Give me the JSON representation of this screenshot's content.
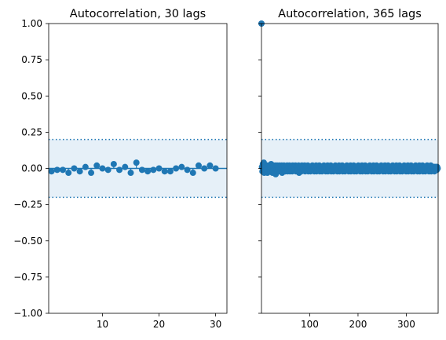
{
  "chart_data": [
    {
      "type": "scatter",
      "subtype": "acf-stem",
      "title": "Autocorrelation, 30 lags",
      "xlabel": "",
      "ylabel": "",
      "xlim": [
        0.5,
        32
      ],
      "ylim": [
        -1.0,
        1.0
      ],
      "xticks": [
        10,
        20,
        30
      ],
      "xtick_labels": [
        "10",
        "20",
        "30"
      ],
      "yticks": [
        1.0,
        0.75,
        0.5,
        0.25,
        0.0,
        -0.25,
        -0.5,
        -0.75,
        -1.0
      ],
      "ytick_labels": [
        "1.00",
        "0.75",
        "0.50",
        "0.25",
        "0.00",
        "−0.25",
        "−0.50",
        "−0.75",
        "−1.00"
      ],
      "confidence_band": [
        -0.2,
        0.2
      ],
      "grid": false,
      "color": "#1f77b4",
      "band_color": "#e6f0f8",
      "x": [
        1,
        2,
        3,
        4,
        5,
        6,
        7,
        8,
        9,
        10,
        11,
        12,
        13,
        14,
        15,
        16,
        17,
        18,
        19,
        20,
        21,
        22,
        23,
        24,
        25,
        26,
        27,
        28,
        29,
        30
      ],
      "values": [
        -0.02,
        -0.01,
        -0.01,
        -0.03,
        0.0,
        -0.02,
        0.01,
        -0.03,
        0.02,
        0.0,
        -0.01,
        0.03,
        -0.01,
        0.01,
        -0.03,
        0.04,
        -0.01,
        -0.02,
        -0.01,
        0.0,
        -0.02,
        -0.02,
        0.0,
        0.01,
        -0.01,
        -0.03,
        0.02,
        0.0,
        0.02,
        0.0
      ]
    },
    {
      "type": "scatter",
      "subtype": "acf-stem",
      "title": "Autocorrelation, 365 lags",
      "xlabel": "",
      "ylabel": "",
      "xlim": [
        0,
        366
      ],
      "ylim": [
        -1.0,
        1.0
      ],
      "xticks": [
        100,
        200,
        300
      ],
      "xtick_labels": [
        "100",
        "200",
        "300"
      ],
      "ytick_labels_visible": false,
      "confidence_band": [
        -0.2,
        0.2
      ],
      "grid": false,
      "color": "#1f77b4",
      "band_color": "#e6f0f8",
      "lag0_value": 1.0,
      "lags": [
        1,
        365
      ],
      "values": [
        0.01,
        -0.02,
        0.03,
        -0.01,
        0.04,
        -0.03,
        0.02,
        0.0,
        -0.02,
        0.01,
        -0.01,
        0.02,
        -0.03,
        0.01,
        0.0,
        -0.02,
        0.02,
        -0.01,
        0.01,
        -0.02,
        0.03,
        -0.01,
        0.0,
        -0.03,
        0.02,
        -0.01,
        0.01,
        -0.02,
        0.0,
        0.02,
        -0.04,
        0.01,
        -0.01,
        0.02,
        -0.02,
        0.01,
        0.0,
        -0.01,
        0.02,
        -0.02,
        0.01,
        -0.01,
        0.0,
        0.02,
        -0.03,
        0.01,
        0.0,
        -0.01,
        0.02,
        -0.01,
        0.01,
        -0.02,
        0.0,
        0.01,
        -0.01,
        0.02,
        -0.02,
        0.0,
        0.01,
        -0.01,
        0.02,
        -0.02,
        0.01,
        0.0,
        -0.01,
        0.01,
        -0.02,
        0.02,
        0.0,
        -0.01,
        0.01,
        -0.01,
        0.0,
        0.02,
        -0.02,
        0.01,
        -0.01,
        0.0,
        0.01,
        -0.01,
        0.02,
        -0.03,
        0.01,
        0.0,
        -0.01,
        0.01,
        -0.02,
        0.02,
        -0.01,
        0.0,
        0.01,
        -0.01,
        0.0,
        0.02,
        -0.02,
        0.01,
        -0.01,
        0.0,
        0.01,
        -0.01,
        0.02,
        -0.02,
        0.0,
        0.01,
        -0.01,
        0.01,
        -0.02,
        0.01,
        0.0,
        -0.01,
        0.02,
        -0.01,
        0.0,
        0.01,
        -0.02,
        0.01,
        -0.01,
        0.0,
        0.02,
        -0.02,
        0.01,
        -0.01,
        0.0,
        0.01,
        -0.01,
        0.02,
        -0.02,
        0.0,
        0.01,
        -0.01,
        0.01,
        -0.02,
        0.01,
        0.0,
        -0.01,
        0.02,
        -0.01,
        0.0,
        0.01,
        -0.02,
        0.01,
        -0.01,
        0.0,
        0.02,
        -0.02,
        0.01,
        -0.01,
        0.0,
        0.01,
        -0.01,
        0.02,
        -0.02,
        0.0,
        0.01,
        -0.01,
        0.01,
        -0.02,
        0.01,
        0.0,
        -0.01,
        0.02,
        -0.01,
        0.0,
        0.01,
        -0.02,
        0.01,
        -0.01,
        0.0,
        0.02,
        -0.02,
        0.01,
        -0.01,
        0.0,
        0.01,
        -0.01,
        0.02,
        -0.02,
        0.0,
        0.01,
        -0.01,
        0.01,
        -0.02,
        0.01,
        0.0,
        -0.01,
        0.02,
        -0.01,
        0.0,
        0.01,
        -0.02,
        0.01,
        -0.01,
        0.0,
        0.02,
        -0.02,
        0.01,
        -0.01,
        0.0,
        0.01,
        -0.01,
        0.02,
        -0.02,
        0.0,
        0.01,
        -0.01,
        0.01,
        -0.02,
        0.01,
        0.0,
        -0.01,
        0.02,
        -0.01,
        0.0,
        0.01,
        -0.02,
        0.01,
        -0.01,
        0.0,
        0.02,
        -0.02,
        0.01,
        -0.01,
        0.0,
        0.01,
        -0.01,
        0.02,
        -0.02,
        0.0,
        0.01,
        -0.01,
        0.01,
        -0.02,
        0.01,
        0.0,
        -0.01,
        0.02,
        -0.01,
        0.0,
        0.01,
        -0.02,
        0.01,
        -0.01,
        0.0,
        0.02,
        -0.02,
        0.01,
        -0.01,
        0.0,
        0.01,
        -0.01,
        0.02,
        -0.02,
        0.0,
        0.01,
        -0.01,
        0.01,
        -0.02,
        0.01,
        0.0,
        -0.01,
        0.02,
        -0.01,
        0.0,
        0.01,
        -0.02,
        0.01,
        -0.01,
        0.0,
        0.02,
        -0.02,
        0.01,
        -0.01,
        0.0,
        0.01,
        -0.01,
        0.02,
        -0.02,
        0.0,
        0.01,
        -0.01,
        0.01,
        -0.02,
        0.01,
        0.0,
        -0.01,
        0.02,
        -0.01,
        0.0,
        0.01,
        -0.02,
        0.01,
        -0.01,
        0.0,
        0.02,
        -0.02,
        0.01,
        -0.01,
        0.0,
        0.01,
        -0.01,
        0.02,
        -0.02,
        0.0,
        0.01,
        -0.01,
        0.01,
        -0.02,
        0.01,
        0.0,
        -0.01,
        0.02,
        -0.01,
        0.0,
        0.01,
        -0.02,
        0.01,
        -0.01,
        0.0,
        0.02,
        -0.02,
        0.01,
        -0.01,
        0.0,
        0.01,
        -0.01,
        0.02,
        -0.02,
        0.0,
        0.01,
        -0.01,
        0.01,
        -0.02,
        0.01,
        0.0,
        -0.01,
        0.02,
        -0.01,
        0.0,
        0.01,
        -0.02,
        0.01,
        -0.01,
        0.0,
        0.02,
        -0.02,
        0.01,
        -0.01,
        0.0,
        0.01,
        -0.01,
        0.02,
        -0.02,
        0.0,
        0.01,
        -0.01,
        0.01,
        -0.02,
        0.01,
        0.0,
        -0.01,
        0.02,
        -0.01,
        0.0,
        0.01,
        -0.02,
        0.01,
        -0.01,
        0.0,
        0.02,
        -0.02,
        0.01,
        -0.01,
        0.0,
        0.01,
        -0.01,
        0.01,
        -0.02,
        0.01,
        0.0,
        -0.01,
        0.01,
        -0.01,
        0.01,
        0.0
      ]
    }
  ]
}
